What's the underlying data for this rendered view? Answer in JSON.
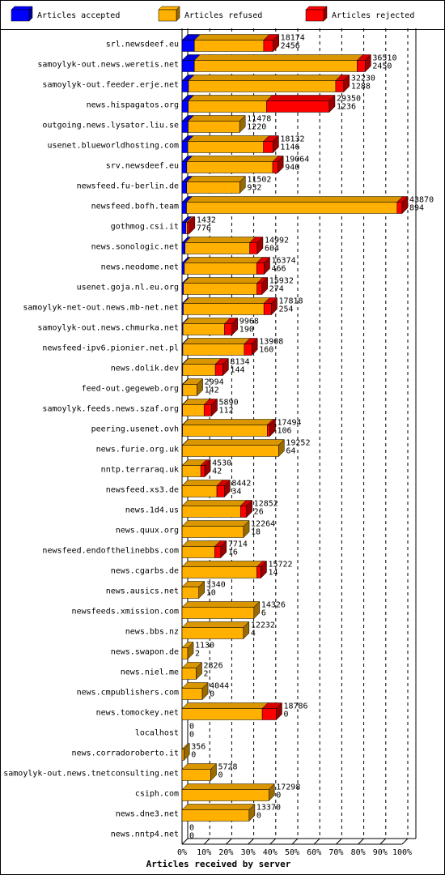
{
  "chart_data": {
    "type": "stacked-bar-3d",
    "orientation": "horizontal",
    "x_label": "Articles received by server",
    "categories": [
      "srl.newsdeef.eu",
      "samoylyk-out.news.weretis.net",
      "samoylyk-out.feeder.erje.net",
      "news.hispagatos.org",
      "outgoing.news.lysator.liu.se",
      "usenet.blueworldhosting.com",
      "srv.newsdeef.eu",
      "newsfeed.fu-berlin.de",
      "newsfeed.bofh.team",
      "gothmog.csi.it",
      "news.sonologic.net",
      "news.neodome.net",
      "usenet.goja.nl.eu.org",
      "samoylyk-net-out.news.mb-net.net",
      "samoylyk-out.news.chmurka.net",
      "newsfeed-ipv6.pionier.net.pl",
      "news.dolik.dev",
      "feed-out.gegeweb.org",
      "samoylyk.feeds.news.szaf.org",
      "peering.usenet.ovh",
      "news.furie.org.uk",
      "nntp.terraraq.uk",
      "newsfeed.xs3.de",
      "news.1d4.us",
      "news.quux.org",
      "newsfeed.endofthelinebbs.com",
      "news.cgarbs.de",
      "news.ausics.net",
      "newsfeeds.xmission.com",
      "news.bbs.nz",
      "news.swapon.de",
      "news.niel.me",
      "news.cmpublishers.com",
      "news.tomockey.net",
      "localhost",
      "news.corradoroberto.it",
      "samoylyk-out.news.tnetconsulting.net",
      "csiph.com",
      "news.dne3.net",
      "news.nntp4.net"
    ],
    "totals": [
      18174,
      36510,
      32230,
      29350,
      11478,
      18132,
      19064,
      11502,
      43870,
      1432,
      14992,
      16374,
      15932,
      17818,
      9968,
      13908,
      8134,
      2994,
      5890,
      17494,
      19252,
      4530,
      8442,
      12852,
      12264,
      7714,
      15722,
      3340,
      14326,
      12232,
      1130,
      2826,
      4044,
      18786,
      0,
      356,
      5728,
      17298,
      13370,
      0
    ],
    "series": [
      {
        "name": "Articles accepted",
        "color": "#0000ff",
        "values": [
          2456,
          2450,
          1288,
          1236,
          1220,
          1146,
          940,
          932,
          894,
          776,
          604,
          466,
          274,
          254,
          190,
          160,
          144,
          142,
          112,
          106,
          64,
          42,
          34,
          26,
          18,
          16,
          14,
          10,
          6,
          4,
          2,
          2,
          0,
          0,
          0,
          0,
          0,
          0,
          0,
          0
        ]
      },
      {
        "name": "Articles refused",
        "color": "#ffb000",
        "values": [
          13818,
          32460,
          29342,
          15614,
          10258,
          15086,
          17124,
          10570,
          41976,
          256,
          12888,
          14408,
          14658,
          16064,
          8278,
          12248,
          6490,
          2852,
          4278,
          16888,
          19188,
          3688,
          6908,
          11626,
          12246,
          6498,
          14908,
          3330,
          14320,
          12228,
          1128,
          2824,
          4044,
          15986,
          0,
          356,
          5728,
          17298,
          13370,
          0
        ]
      },
      {
        "name": "Articles rejected",
        "color": "#ff0000",
        "values": [
          1900,
          1600,
          1600,
          12500,
          0,
          1900,
          1000,
          0,
          1000,
          400,
          1500,
          1500,
          1000,
          1500,
          1500,
          1500,
          1500,
          0,
          1500,
          500,
          0,
          800,
          1500,
          1200,
          0,
          1200,
          800,
          0,
          0,
          0,
          0,
          0,
          0,
          2800,
          0,
          0,
          0,
          0,
          0,
          0
        ]
      }
    ],
    "xlim": [
      0,
      43870
    ],
    "xticks": [
      {
        "value": 0,
        "label": "0%"
      },
      {
        "value": 4387,
        "label": "10%"
      },
      {
        "value": 8774,
        "label": "20%"
      },
      {
        "value": 13161,
        "label": "30%"
      },
      {
        "value": 17548,
        "label": "40%"
      },
      {
        "value": 21935,
        "label": "50%"
      },
      {
        "value": 26322,
        "label": "60%"
      },
      {
        "value": 30709,
        "label": "70%"
      },
      {
        "value": 35096,
        "label": "80%"
      },
      {
        "value": 39483,
        "label": "90%"
      },
      {
        "value": 43870,
        "label": "100%"
      }
    ],
    "grid": true,
    "legend": "top"
  }
}
